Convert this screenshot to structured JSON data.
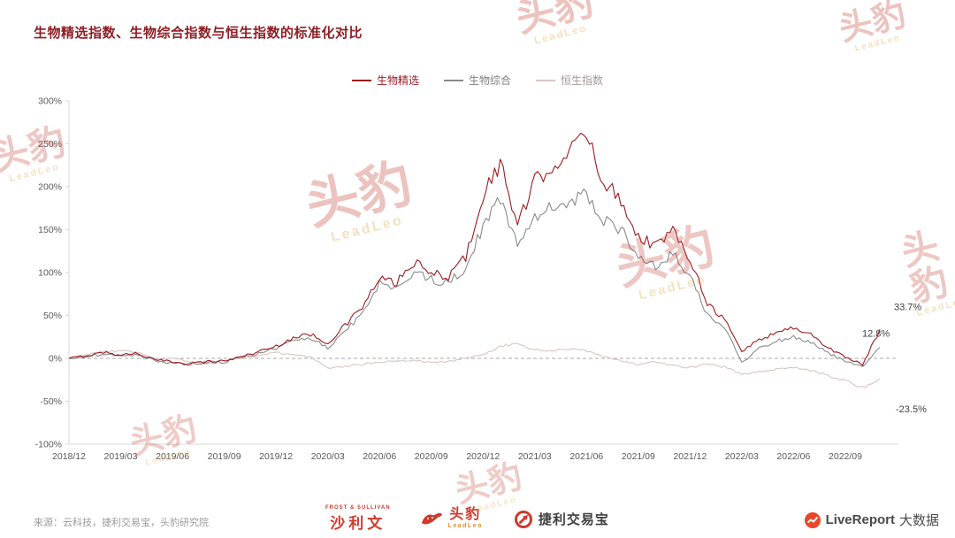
{
  "page": {
    "title": "生物精选指数、生物综合指数与恒生指数的标准化对比",
    "source_note": "来源：云科技，捷利交易宝，头豹研究院"
  },
  "legend": {
    "items": [
      {
        "label": "生物精选",
        "line_color": "#9b1b20",
        "text_color": "#9b1b20"
      },
      {
        "label": "生物综合",
        "line_color": "#8a8a8a",
        "text_color": "#7f7f7f"
      },
      {
        "label": "恒生指数",
        "line_color": "#d9c5c2",
        "text_color": "#a29a98"
      }
    ]
  },
  "chart_data": {
    "type": "line",
    "title": "生物精选指数、生物综合指数与恒生指数的标准化对比",
    "x_unit": "month",
    "x_range": [
      "2018/12",
      "2022/11"
    ],
    "x_tick_labels": [
      "2018/12",
      "2019/03",
      "2019/06",
      "2019/09",
      "2019/12",
      "2020/03",
      "2020/06",
      "2020/09",
      "2020/12",
      "2021/03",
      "2021/06",
      "2021/09",
      "2021/12",
      "2022/03",
      "2022/06",
      "2022/09"
    ],
    "ylim": [
      -100,
      300
    ],
    "y_tick_labels": [
      "300%",
      "250%",
      "200%",
      "150%",
      "100%",
      "50%",
      "0%",
      "-50%",
      "-100%"
    ],
    "grid": "zero-line-only",
    "legend_position": "top-center",
    "series": [
      {
        "name": "生物精选",
        "color": "#9b1b20",
        "end_value_percent": 33.7,
        "values_percent": [
          0,
          3,
          7,
          4,
          6,
          -2,
          -4,
          -6,
          -4,
          -3,
          2,
          8,
          14,
          24,
          28,
          18,
          38,
          60,
          92,
          88,
          112,
          98,
          96,
          118,
          190,
          228,
          155,
          205,
          225,
          240,
          262,
          205,
          185,
          142,
          132,
          148,
          118,
          65,
          45,
          8,
          22,
          30,
          36,
          28,
          12,
          2,
          -8,
          33.7
        ]
      },
      {
        "name": "生物综合",
        "color": "#8a8a8a",
        "end_value_percent": 12.8,
        "values_percent": [
          0,
          2,
          5,
          3,
          4,
          -3,
          -5,
          -7,
          -5,
          -4,
          1,
          6,
          12,
          20,
          24,
          12,
          32,
          52,
          88,
          82,
          100,
          92,
          88,
          105,
          155,
          185,
          135,
          165,
          175,
          182,
          192,
          160,
          150,
          115,
          108,
          122,
          95,
          50,
          35,
          -5,
          12,
          20,
          26,
          18,
          6,
          -4,
          -10,
          12.8
        ]
      },
      {
        "name": "恒生指数",
        "color": "#d9c5c2",
        "end_value_percent": -23.5,
        "values_percent": [
          0,
          4,
          8,
          9,
          7,
          -2,
          1,
          -4,
          -6,
          -2,
          1,
          3,
          7,
          4,
          2,
          -12,
          -9,
          -7,
          -4,
          -3,
          -2,
          -5,
          -4,
          1,
          4,
          14,
          17,
          10,
          9,
          11,
          9,
          2,
          -3,
          -7,
          -4,
          -8,
          -11,
          -7,
          -10,
          -19,
          -15,
          -13,
          -10,
          -14,
          -20,
          -26,
          -34,
          -23.5
        ]
      }
    ],
    "annotations": [
      {
        "text": "33.7%",
        "series": "生物精选"
      },
      {
        "text": "12.8%",
        "series": "生物综合"
      },
      {
        "text": "-23.5%",
        "series": "恒生指数"
      }
    ]
  },
  "footer": {
    "sullivan": {
      "top": "FROST & SULLIVAN",
      "name": "沙利文"
    },
    "leadleo": {
      "name": "头豹",
      "sub": "LeadLeo"
    },
    "jieli": {
      "name": "捷利交易宝"
    },
    "livereport": {
      "name": "LiveReport",
      "suffix": "大数据"
    }
  },
  "watermark": {
    "text": "头豹",
    "sub": "LeadLeo"
  }
}
